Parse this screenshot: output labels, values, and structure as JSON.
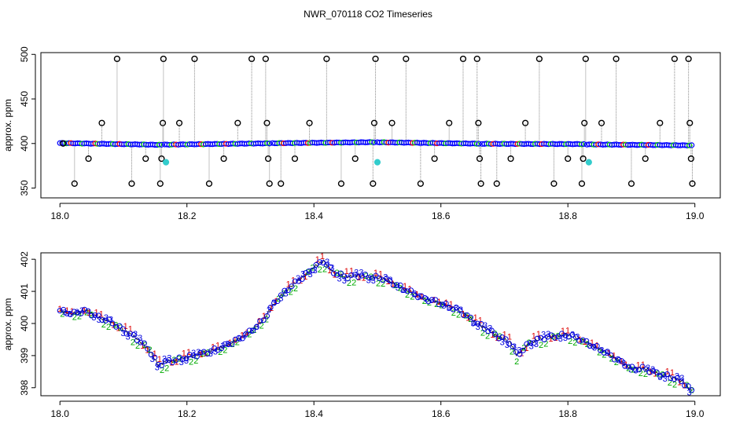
{
  "title": "NWR_070118  CO2 Timeseries",
  "chart_data": [
    {
      "type": "scatter",
      "panel": "top",
      "ylabel": "approx. ppm",
      "xlabel": "",
      "xlim": [
        17.97,
        19.04
      ],
      "ylim": [
        339,
        502
      ],
      "x_ticks": [
        "18.0",
        "18.2",
        "18.4",
        "18.6",
        "18.8",
        "19.0"
      ],
      "x_tick_values": [
        18.0,
        18.2,
        18.4,
        18.6,
        18.8,
        19.0
      ],
      "y_ticks": [
        "350",
        "400",
        "450",
        "500"
      ],
      "y_tick_values": [
        350,
        400,
        450,
        500
      ],
      "grid": false,
      "colors": {
        "main": "#0000ff",
        "alt1": "#ff0000",
        "alt2": "#00cc00",
        "outlier": "#000000",
        "cal": "#33cccc",
        "dropline": "#888888"
      },
      "segments": [
        {
          "x": [
            18.0,
            18.16
          ],
          "y": [
            400.5,
            398.5
          ]
        },
        {
          "x": [
            18.165,
            18.33
          ],
          "y": [
            398.7,
            400.2
          ]
        },
        {
          "x": [
            18.335,
            18.495
          ],
          "y": [
            400.3,
            401.5
          ]
        },
        {
          "x": [
            18.5,
            18.66
          ],
          "y": [
            401.4,
            399.8
          ]
        },
        {
          "x": [
            18.665,
            18.825
          ],
          "y": [
            399.7,
            399.3
          ]
        },
        {
          "x": [
            18.83,
            18.995
          ],
          "y": [
            399.0,
            397.9
          ]
        }
      ],
      "outlier_points": [
        {
          "x": 18.005,
          "y": 400
        },
        {
          "x": 18.023,
          "y": 355
        },
        {
          "x": 18.045,
          "y": 383
        },
        {
          "x": 18.066,
          "y": 423
        },
        {
          "x": 18.09,
          "y": 495
        },
        {
          "x": 18.113,
          "y": 355
        },
        {
          "x": 18.135,
          "y": 383
        },
        {
          "x": 18.158,
          "y": 355
        },
        {
          "x": 18.16,
          "y": 383
        },
        {
          "x": 18.162,
          "y": 423
        },
        {
          "x": 18.163,
          "y": 495
        },
        {
          "x": 18.188,
          "y": 423
        },
        {
          "x": 18.212,
          "y": 495
        },
        {
          "x": 18.235,
          "y": 355
        },
        {
          "x": 18.258,
          "y": 383
        },
        {
          "x": 18.28,
          "y": 423
        },
        {
          "x": 18.302,
          "y": 495
        },
        {
          "x": 18.324,
          "y": 495
        },
        {
          "x": 18.326,
          "y": 423
        },
        {
          "x": 18.328,
          "y": 383
        },
        {
          "x": 18.33,
          "y": 355
        },
        {
          "x": 18.348,
          "y": 355
        },
        {
          "x": 18.37,
          "y": 383
        },
        {
          "x": 18.393,
          "y": 423
        },
        {
          "x": 18.42,
          "y": 495
        },
        {
          "x": 18.443,
          "y": 355
        },
        {
          "x": 18.465,
          "y": 383
        },
        {
          "x": 18.493,
          "y": 355
        },
        {
          "x": 18.495,
          "y": 423
        },
        {
          "x": 18.497,
          "y": 495
        },
        {
          "x": 18.523,
          "y": 423
        },
        {
          "x": 18.545,
          "y": 495
        },
        {
          "x": 18.568,
          "y": 355
        },
        {
          "x": 18.59,
          "y": 383
        },
        {
          "x": 18.613,
          "y": 423
        },
        {
          "x": 18.635,
          "y": 495
        },
        {
          "x": 18.657,
          "y": 495
        },
        {
          "x": 18.659,
          "y": 423
        },
        {
          "x": 18.661,
          "y": 383
        },
        {
          "x": 18.663,
          "y": 355
        },
        {
          "x": 18.688,
          "y": 355
        },
        {
          "x": 18.71,
          "y": 383
        },
        {
          "x": 18.733,
          "y": 423
        },
        {
          "x": 18.755,
          "y": 495
        },
        {
          "x": 18.778,
          "y": 355
        },
        {
          "x": 18.8,
          "y": 383
        },
        {
          "x": 18.822,
          "y": 355
        },
        {
          "x": 18.824,
          "y": 383
        },
        {
          "x": 18.826,
          "y": 423
        },
        {
          "x": 18.828,
          "y": 495
        },
        {
          "x": 18.853,
          "y": 423
        },
        {
          "x": 18.876,
          "y": 495
        },
        {
          "x": 18.9,
          "y": 355
        },
        {
          "x": 18.922,
          "y": 383
        },
        {
          "x": 18.945,
          "y": 423
        },
        {
          "x": 18.968,
          "y": 495
        },
        {
          "x": 18.99,
          "y": 495
        },
        {
          "x": 18.992,
          "y": 423
        },
        {
          "x": 18.994,
          "y": 383
        },
        {
          "x": 18.996,
          "y": 355
        }
      ],
      "cal_points": [
        {
          "x": 18.167,
          "y": 379
        },
        {
          "x": 18.5,
          "y": 379
        },
        {
          "x": 18.833,
          "y": 379
        }
      ]
    },
    {
      "type": "scatter",
      "panel": "bottom",
      "ylabel": "approx. ppm",
      "xlabel": "",
      "xlim": [
        17.97,
        19.04
      ],
      "ylim": [
        397.75,
        402.2
      ],
      "x_ticks": [
        "18.0",
        "18.2",
        "18.4",
        "18.6",
        "18.8",
        "19.0"
      ],
      "x_tick_values": [
        18.0,
        18.2,
        18.4,
        18.6,
        18.8,
        19.0
      ],
      "y_ticks": [
        "398",
        "399",
        "400",
        "401",
        "402"
      ],
      "y_tick_values": [
        398,
        399,
        400,
        401,
        402
      ],
      "grid": false,
      "glyph_labels": [
        "1",
        "2",
        "3"
      ],
      "glyph_colors": {
        "1": "#dd0000",
        "2": "#00aa00",
        "3": "#0000dd"
      },
      "curve": {
        "x": [
          18.0,
          18.02,
          18.04,
          18.06,
          18.08,
          18.1,
          18.12,
          18.14,
          18.155,
          18.165,
          18.18,
          18.2,
          18.22,
          18.24,
          18.26,
          18.28,
          18.3,
          18.32,
          18.34,
          18.36,
          18.38,
          18.4,
          18.415,
          18.43,
          18.45,
          18.47,
          18.49,
          18.51,
          18.53,
          18.55,
          18.57,
          18.59,
          18.61,
          18.63,
          18.65,
          18.67,
          18.69,
          18.71,
          18.72,
          18.74,
          18.76,
          18.78,
          18.8,
          18.82,
          18.84,
          18.86,
          18.88,
          18.9,
          18.92,
          18.94,
          18.96,
          18.98,
          18.995
        ],
        "y": [
          400.4,
          400.3,
          400.4,
          400.2,
          400.05,
          399.8,
          399.55,
          399.2,
          398.7,
          398.8,
          398.85,
          398.95,
          399.05,
          399.15,
          399.3,
          399.5,
          399.75,
          400.1,
          400.7,
          401.1,
          401.4,
          401.75,
          401.95,
          401.6,
          401.45,
          401.5,
          401.45,
          401.4,
          401.2,
          401.0,
          400.8,
          400.7,
          400.55,
          400.4,
          400.1,
          399.85,
          399.6,
          399.4,
          399.0,
          399.4,
          399.55,
          399.6,
          399.65,
          399.5,
          399.3,
          399.1,
          398.85,
          398.6,
          398.6,
          398.45,
          398.35,
          398.2,
          397.9
        ]
      }
    }
  ]
}
